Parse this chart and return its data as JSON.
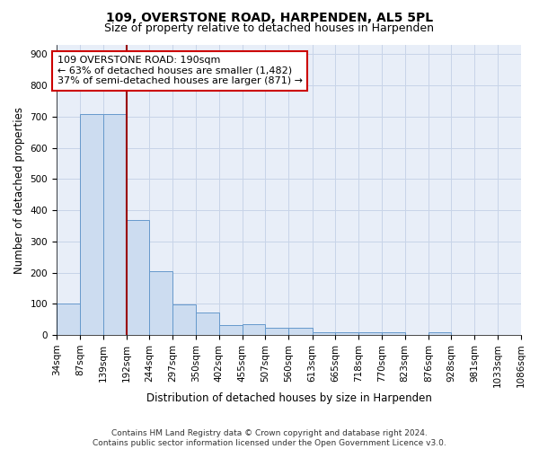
{
  "title1": "109, OVERSTONE ROAD, HARPENDEN, AL5 5PL",
  "title2": "Size of property relative to detached houses in Harpenden",
  "xlabel": "Distribution of detached houses by size in Harpenden",
  "ylabel": "Number of detached properties",
  "bin_edges": [
    34,
    87,
    139,
    192,
    244,
    297,
    350,
    402,
    455,
    507,
    560,
    613,
    665,
    718,
    770,
    823,
    876,
    928,
    981,
    1033,
    1086
  ],
  "values": [
    101,
    707,
    707,
    370,
    205,
    97,
    72,
    33,
    35,
    22,
    22,
    10,
    10,
    10,
    8,
    0,
    8,
    0,
    0,
    0
  ],
  "bar_fill_color": "#ccdcf0",
  "bar_edge_color": "#6699cc",
  "vline_x": 192,
  "vline_color": "#990000",
  "annotation_text": "109 OVERSTONE ROAD: 190sqm\n← 63% of detached houses are smaller (1,482)\n37% of semi-detached houses are larger (871) →",
  "annotation_box_facecolor": "#ffffff",
  "annotation_box_edgecolor": "#cc0000",
  "ylim": [
    0,
    930
  ],
  "yticks": [
    0,
    100,
    200,
    300,
    400,
    500,
    600,
    700,
    800,
    900
  ],
  "grid_color": "#c8d4e8",
  "bg_color": "#e8eef8",
  "footer": "Contains HM Land Registry data © Crown copyright and database right 2024.\nContains public sector information licensed under the Open Government Licence v3.0.",
  "title1_fontsize": 10,
  "title2_fontsize": 9,
  "xlabel_fontsize": 8.5,
  "ylabel_fontsize": 8.5,
  "tick_fontsize": 7.5,
  "annotation_fontsize": 8,
  "footer_fontsize": 6.5
}
